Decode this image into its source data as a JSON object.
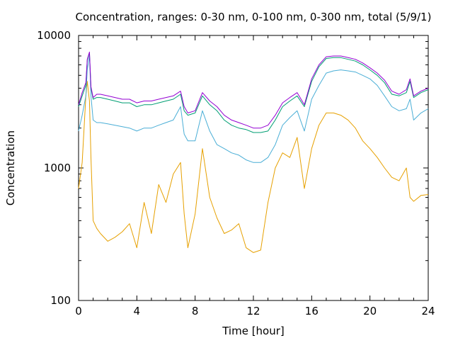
{
  "chart_data": {
    "type": "line",
    "title": "Concentration, ranges: 0-30 nm, 0-100 nm, 0-300 nm, total (5/9/1)",
    "xlabel": "Time [hour]",
    "ylabel": "Concentration",
    "xlim": [
      0,
      24
    ],
    "ylim": [
      100,
      10000
    ],
    "yscale": "log",
    "grid": false,
    "legend": "none",
    "xticks": [
      "0",
      "4",
      "8",
      "12",
      "16",
      "20",
      "24"
    ],
    "yticks": [
      "100",
      "1000",
      "10000"
    ],
    "x": [
      0,
      0.25,
      0.5,
      0.6,
      0.75,
      0.85,
      1,
      1.25,
      1.5,
      2,
      2.5,
      3,
      3.5,
      4,
      4.5,
      5,
      5.5,
      6,
      6.5,
      7,
      7.25,
      7.5,
      8,
      8.5,
      9,
      9.5,
      10,
      10.5,
      11,
      11.5,
      12,
      12.5,
      13,
      13.5,
      14,
      14.5,
      15,
      15.5,
      16,
      16.5,
      17,
      17.5,
      18,
      18.5,
      19,
      19.5,
      20,
      20.5,
      21,
      21.5,
      22,
      22.5,
      22.75,
      23,
      23.5,
      24
    ],
    "series": [
      {
        "color": "#e6a000",
        "values": [
          700,
          1100,
          3500,
          4500,
          3200,
          1200,
          400,
          350,
          320,
          280,
          300,
          330,
          380,
          250,
          550,
          320,
          750,
          550,
          900,
          1100,
          450,
          250,
          450,
          1400,
          600,
          420,
          320,
          340,
          380,
          250,
          230,
          240,
          550,
          1000,
          1300,
          1200,
          1700,
          700,
          1400,
          2100,
          2600,
          2600,
          2500,
          2300,
          2000,
          1600,
          1400,
          1200,
          1000,
          850,
          800,
          1000,
          600,
          560,
          620,
          630
        ]
      },
      {
        "color": "#4aaed6",
        "values": [
          1900,
          2500,
          3500,
          5500,
          7000,
          3500,
          2300,
          2200,
          2200,
          2150,
          2100,
          2050,
          2000,
          1900,
          2000,
          2000,
          2100,
          2200,
          2300,
          2900,
          1800,
          1600,
          1600,
          2700,
          1900,
          1500,
          1400,
          1300,
          1250,
          1150,
          1100,
          1100,
          1200,
          1500,
          2100,
          2400,
          2700,
          1900,
          3300,
          4200,
          5200,
          5400,
          5500,
          5400,
          5300,
          5000,
          4700,
          4200,
          3500,
          2900,
          2700,
          2800,
          3300,
          2300,
          2600,
          2800
        ]
      },
      {
        "color": "#009e73",
        "values": [
          2900,
          3500,
          4200,
          6500,
          7400,
          4000,
          3300,
          3400,
          3400,
          3300,
          3200,
          3100,
          3100,
          2900,
          3000,
          3000,
          3100,
          3200,
          3300,
          3600,
          2700,
          2500,
          2600,
          3500,
          3000,
          2700,
          2300,
          2100,
          2000,
          1950,
          1850,
          1850,
          1900,
          2300,
          2900,
          3200,
          3500,
          2900,
          4500,
          5800,
          6700,
          6800,
          6800,
          6600,
          6400,
          6000,
          5500,
          5000,
          4400,
          3600,
          3500,
          3700,
          4500,
          3400,
          3700,
          3900
        ]
      },
      {
        "color": "#9400d3",
        "values": [
          3000,
          3700,
          4400,
          6600,
          7500,
          4100,
          3400,
          3600,
          3600,
          3500,
          3400,
          3300,
          3300,
          3100,
          3200,
          3200,
          3300,
          3400,
          3500,
          3800,
          2900,
          2600,
          2700,
          3700,
          3200,
          2900,
          2500,
          2300,
          2200,
          2100,
          2000,
          2000,
          2100,
          2500,
          3100,
          3400,
          3700,
          3000,
          4700,
          6000,
          6900,
          7000,
          7000,
          6800,
          6600,
          6200,
          5700,
          5200,
          4600,
          3800,
          3600,
          3900,
          4700,
          3500,
          3800,
          4000
        ]
      }
    ]
  }
}
